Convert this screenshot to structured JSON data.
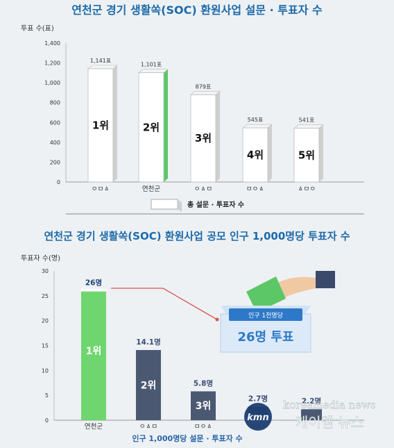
{
  "chart_data": [
    {
      "type": "bar",
      "title": "연천군 경기 생활쏙(SOC) 환원사업 설문 · 투표자 수",
      "ylabel": "투표 수(표)",
      "legend": "총 설문 · 투표자 수",
      "categories": [
        "ㅇㅁㅿ",
        "연천군",
        "ㅇㅿㅁ",
        "ㅁㅇㅿ",
        "ㅿㅁㅇ"
      ],
      "values": [
        1141,
        1101,
        879,
        545,
        541
      ],
      "value_labels": [
        "1,141표",
        "1,101표",
        "879표",
        "545표",
        "541표"
      ],
      "ranks": [
        "1위",
        "2위",
        "3위",
        "4위",
        "5위"
      ],
      "highlight_index": 1,
      "ylim": [
        0,
        1400
      ],
      "yticks": [
        0,
        200,
        400,
        600,
        800,
        "1,000",
        "1,200",
        "1,400"
      ],
      "colors": {
        "bar": "#ffffff",
        "highlight_side": "#5cc767",
        "side": "#cfcfcf"
      }
    },
    {
      "type": "bar",
      "title": "연천군 경기 생활쏙(SOC) 환원사업 공모 인구 1,000명당 투표자 수",
      "ylabel": "투표자 수(명)",
      "xlabel": "인구 1,000명당 설문 · 투표자 수",
      "categories": [
        "연천군",
        "ㅇㅿㅁ",
        "ㅁㅇㅿ",
        "ㅿㅁㅇ",
        ""
      ],
      "values": [
        26,
        14.1,
        5.8,
        2.7,
        2.2
      ],
      "value_labels": [
        "26명",
        "14.1명",
        "5.8명",
        "2.7명",
        "2.2명"
      ],
      "ranks": [
        "1위",
        "2위",
        "3위",
        "",
        ""
      ],
      "ylim": [
        0,
        30
      ],
      "yticks": [
        0,
        5,
        10,
        15,
        20,
        25,
        30
      ],
      "colors": {
        "first": "#6fd66f",
        "other": "#4b5872",
        "label_first": "#1d3f73",
        "label_other": "#3b4c75"
      }
    }
  ],
  "callout": {
    "caption": "인구 1천명당",
    "value": "26명 투표"
  },
  "watermark": {
    "logo": "kmn",
    "english": "koreamedia news",
    "korean": "케이엠 뉴스"
  }
}
